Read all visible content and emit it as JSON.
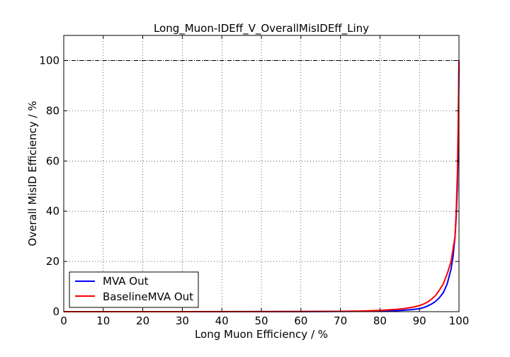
{
  "chart_data": {
    "type": "line",
    "title": "Long_Muon-IDEff_V_OverallMisIDEff_Liny",
    "xlabel": "Long Muon Efficiency / %",
    "ylabel": "Overall MisID Efficiency / %",
    "xlim": [
      0,
      100
    ],
    "ylim": [
      0,
      110
    ],
    "xticks": [
      "0",
      "10",
      "20",
      "30",
      "40",
      "50",
      "60",
      "70",
      "80",
      "90",
      "100"
    ],
    "yticks": [
      "0",
      "20",
      "40",
      "60",
      "80",
      "100"
    ],
    "grid": true,
    "legend_position": "lower-left",
    "reference_line": {
      "y": 100,
      "style": "dash-dot",
      "color": "#000000"
    },
    "series": [
      {
        "name": "MVA Out",
        "color": "#0000ff",
        "x": [
          0,
          10,
          20,
          30,
          40,
          50,
          60,
          70,
          75,
          80,
          84,
          86,
          88,
          90,
          91,
          92,
          93,
          94,
          95,
          96,
          97,
          98,
          98.5,
          99,
          99.3,
          99.6,
          99.8,
          100
        ],
        "y": [
          0,
          0,
          0,
          0,
          0,
          0.02,
          0.04,
          0.1,
          0.15,
          0.25,
          0.4,
          0.55,
          0.8,
          1.2,
          1.6,
          2.2,
          3.0,
          4.0,
          5.5,
          7.5,
          11,
          17,
          22,
          30,
          38,
          50,
          65,
          100
        ]
      },
      {
        "name": "BaselineMVA Out",
        "color": "#ff0000",
        "x": [
          0,
          10,
          20,
          30,
          40,
          50,
          60,
          70,
          75,
          80,
          84,
          86,
          88,
          90,
          91,
          92,
          93,
          94,
          95,
          96,
          97,
          98,
          98.5,
          99,
          99.3,
          99.6,
          99.8,
          100
        ],
        "y": [
          0,
          0,
          0,
          0,
          0.02,
          0.04,
          0.08,
          0.15,
          0.25,
          0.5,
          0.9,
          1.2,
          1.7,
          2.4,
          3.0,
          3.8,
          4.9,
          6.3,
          8.5,
          11,
          15,
          20,
          25,
          30,
          40,
          55,
          75,
          100
        ]
      }
    ]
  }
}
